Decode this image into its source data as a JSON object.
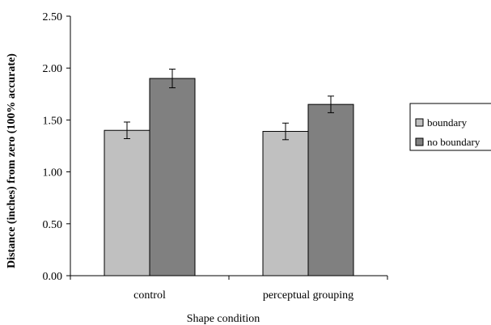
{
  "chart_data": {
    "type": "bar",
    "title": "",
    "xlabel": "Shape condition",
    "ylabel": "Distance (inches) from zero (100% accurate)",
    "categories": [
      "control",
      "perceptual grouping"
    ],
    "series": [
      {
        "name": "boundary",
        "values": [
          1.4,
          1.39
        ],
        "errors": [
          0.08,
          0.08
        ],
        "color": "#c0c0c0"
      },
      {
        "name": "no boundary",
        "values": [
          1.9,
          1.65
        ],
        "errors": [
          0.09,
          0.08
        ],
        "color": "#808080"
      }
    ],
    "ylim": [
      0,
      2.5
    ],
    "yticks": [
      "0.00",
      "0.50",
      "1.00",
      "1.50",
      "2.00",
      "2.50"
    ],
    "grid": false,
    "legend_position": "right"
  }
}
